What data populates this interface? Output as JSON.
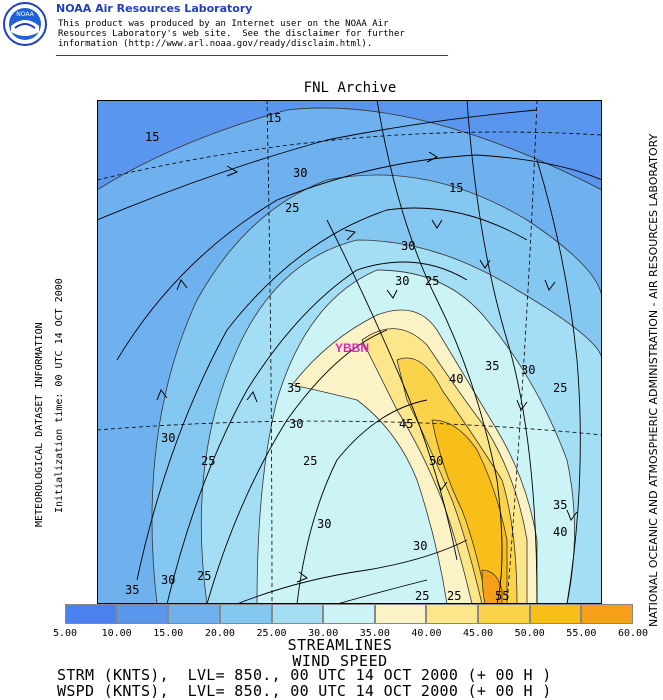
{
  "header": {
    "title": "NOAA Air Resources Laboratory",
    "disclaimer": [
      "This product was produced by an Internet user on the NOAA Air",
      "Resources Laboratory's web site.  See the disclaimer for further",
      "information (http://www.arl.noaa.gov/ready/disclaim.html)."
    ],
    "logo_text": "NOAA"
  },
  "map": {
    "title": "FNL Archive",
    "station": "YBBN",
    "station_color": "#e020c0",
    "contour_labels": [
      "15",
      "15",
      "30",
      "25",
      "15",
      "30",
      "30",
      "25",
      "35",
      "30",
      "40",
      "25",
      "35",
      "30",
      "45",
      "30",
      "25",
      "25",
      "50",
      "30",
      "35",
      "30",
      "40",
      "25",
      "25",
      "55",
      "35",
      "30",
      "25"
    ]
  },
  "side_labels": {
    "right": "NATIONAL OCEANIC AND ATMOSPHERIC ADMINISTRATION - AIR RESOURCES LABORATORY",
    "left_line1": "METEOROLOGICAL DATASET INFORMATION",
    "left_line2": "Initialization time: 00 UTC 14 OCT 2000"
  },
  "legend": {
    "ticks": [
      "5.00",
      "10.00",
      "15.00",
      "20.00",
      "25.00",
      "30.00",
      "35.00",
      "40.00",
      "45.00",
      "50.00",
      "55.00",
      "60.00"
    ],
    "colors": [
      "#4a80ef",
      "#5b96ee",
      "#6fb0ef",
      "#84c7f1",
      "#a4def4",
      "#ccf3f6",
      "#fbf3c6",
      "#fbe68a",
      "#fbd34a",
      "#f8be1a",
      "#f6a01a"
    ]
  },
  "labels": {
    "streamlines": "STREAMLINES",
    "wind_speed": "WIND SPEED",
    "strm": "STRM (KNTS),  LVL= 850., 00 UTC 14 OCT 2000 (+ 00 H )",
    "wspd": "WSPD (KNTS),  LVL= 850., 00 UTC 14 OCT 2000 (+ 00 H )"
  }
}
